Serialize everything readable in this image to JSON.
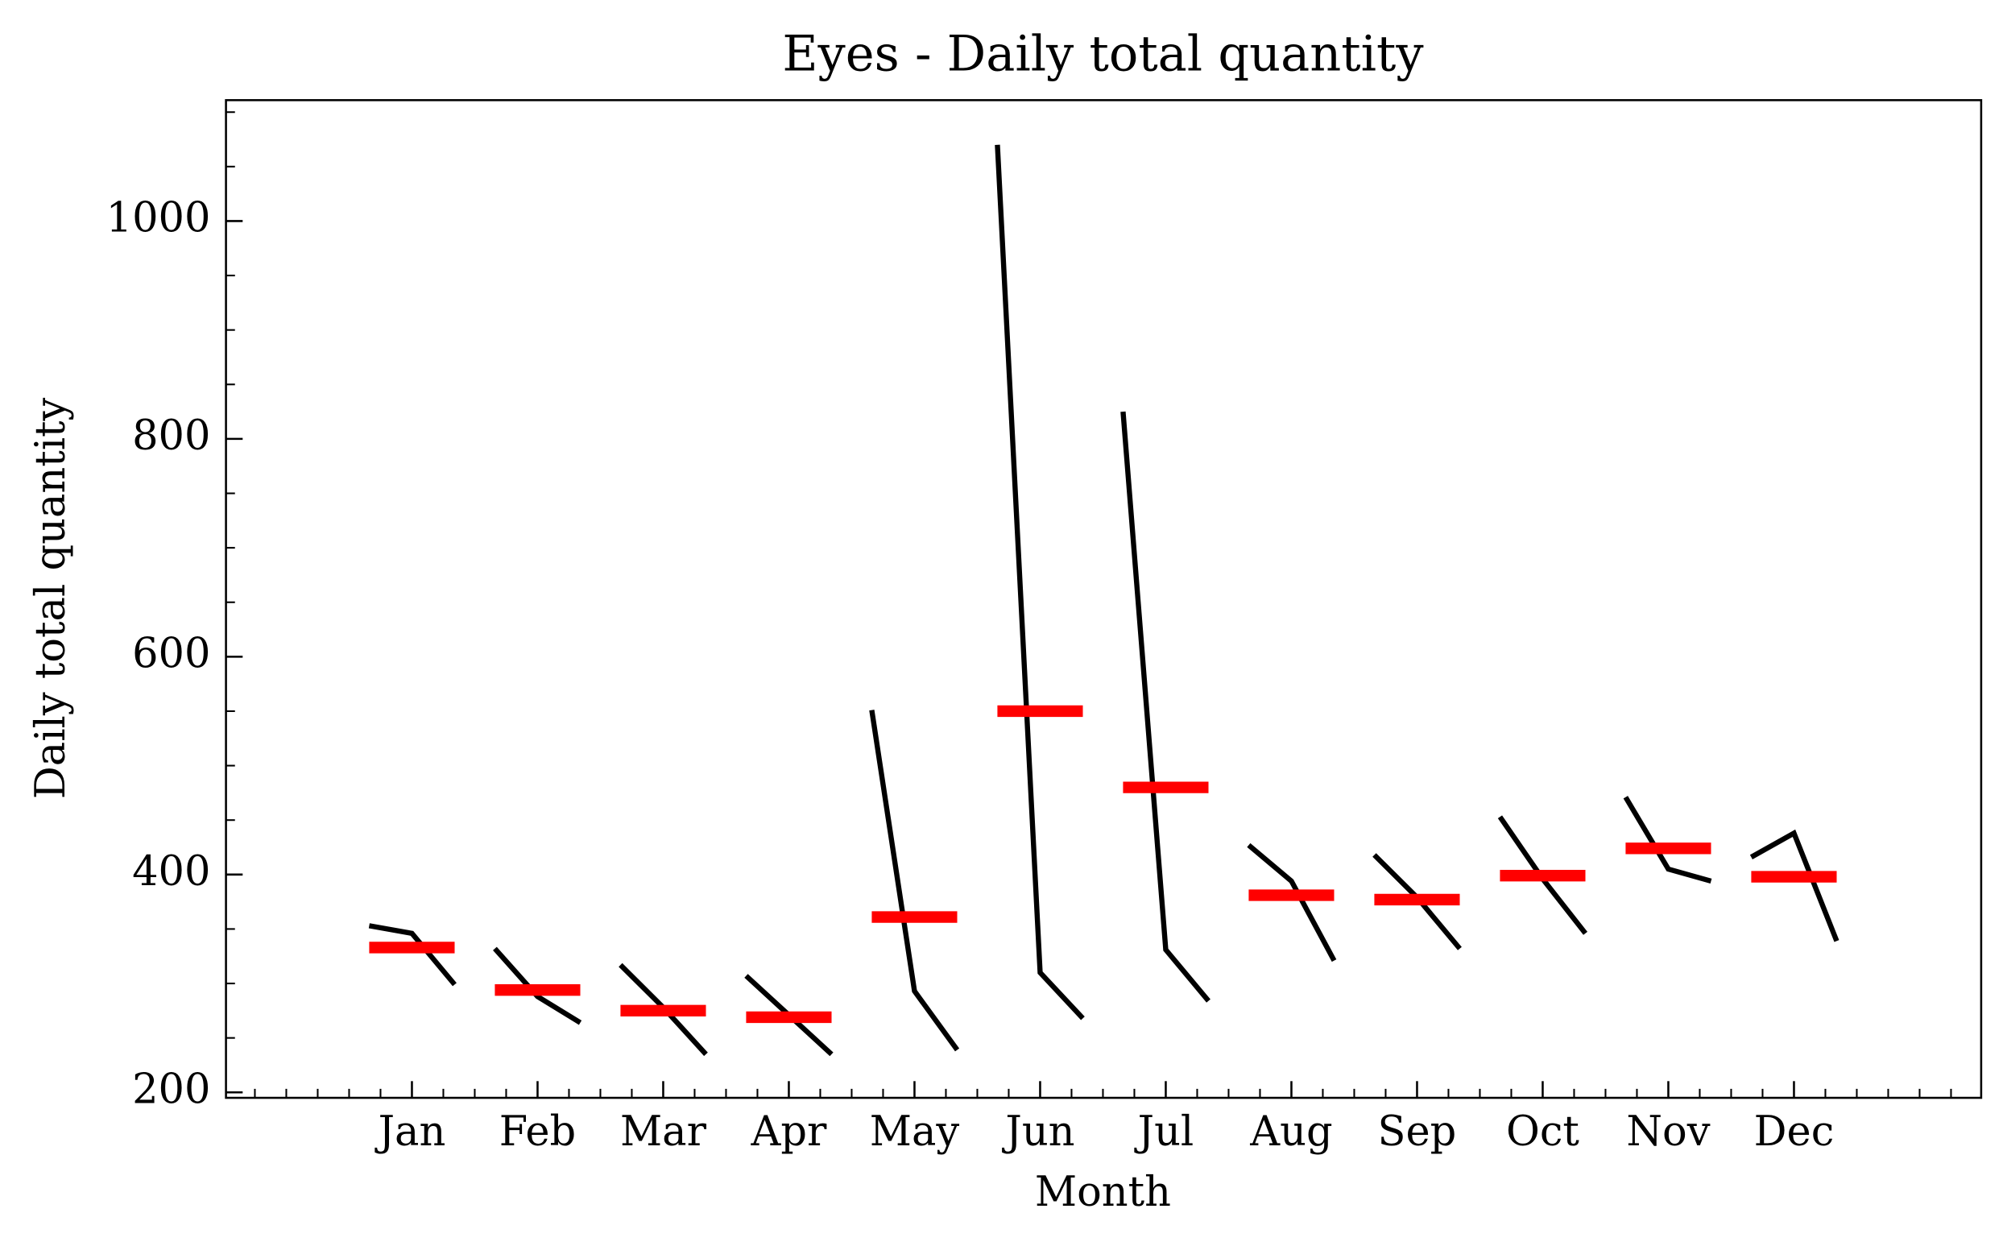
{
  "chart_data": {
    "type": "monthplot",
    "title": "Eyes - Daily total quantity",
    "xlabel": "Month",
    "ylabel": "Daily total quantity",
    "categories": [
      "Jan",
      "Feb",
      "Mar",
      "Apr",
      "May",
      "Jun",
      "Jul",
      "Aug",
      "Sep",
      "Oct",
      "Nov",
      "Dec"
    ],
    "values": [
      [
        353,
        346,
        299
      ],
      [
        332,
        288,
        264
      ],
      [
        317,
        278,
        235
      ],
      [
        307,
        271,
        235
      ],
      [
        551,
        293,
        239
      ],
      [
        1070,
        310,
        268
      ],
      [
        825,
        331,
        284
      ],
      [
        427,
        394,
        321
      ],
      [
        418,
        379,
        332
      ],
      [
        453,
        396,
        346
      ],
      [
        471,
        405,
        394
      ],
      [
        416,
        438,
        339
      ]
    ],
    "means": [
      333,
      294,
      275,
      269,
      361,
      550,
      480,
      381,
      377,
      399,
      424,
      398
    ],
    "line_color": "#000000",
    "mean_color": "#ff0000",
    "xlim": [
      -1.48,
      12.49
    ],
    "ylim": [
      195,
      1111
    ],
    "yticks": [
      200,
      400,
      600,
      800,
      1000
    ],
    "yminorticks": [
      250,
      300,
      350,
      450,
      500,
      550,
      650,
      700,
      750,
      850,
      900,
      950,
      1050,
      1100
    ],
    "xminorticks": [
      -1.25,
      -1,
      -0.75,
      -0.5,
      -0.25,
      0.25,
      0.5,
      0.75,
      1.25,
      1.5,
      1.75,
      2.25,
      2.5,
      2.75,
      3.25,
      3.5,
      3.75,
      4.25,
      4.5,
      4.75,
      5.25,
      5.5,
      5.75,
      6.25,
      6.5,
      6.75,
      7.25,
      7.5,
      7.75,
      8.25,
      8.5,
      8.75,
      9.25,
      9.5,
      9.75,
      10.25,
      10.5,
      10.75,
      11.25,
      11.5,
      11.75,
      12,
      12.25
    ]
  }
}
